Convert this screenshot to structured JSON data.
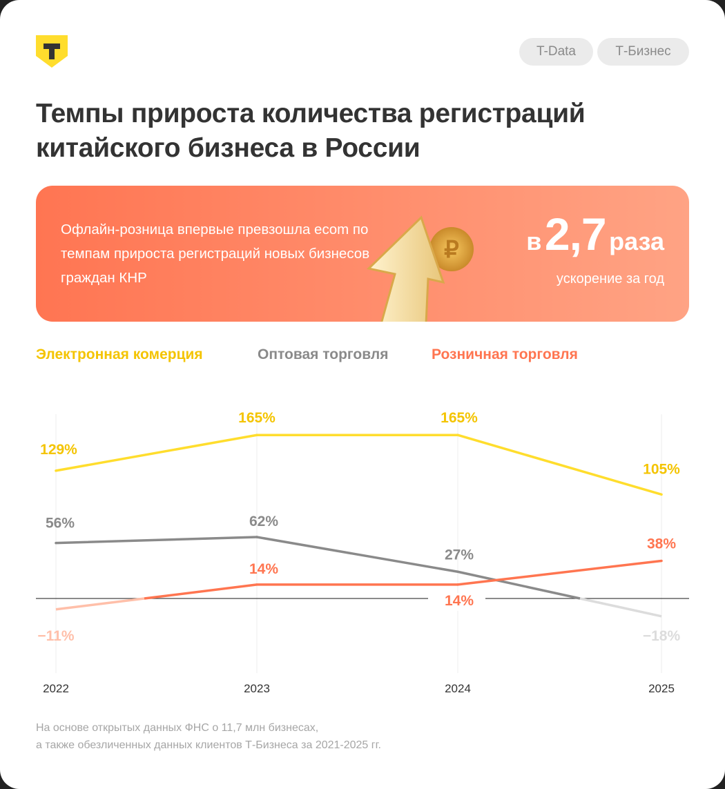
{
  "header": {
    "logo_letter": "Т",
    "tags": [
      "T-Data",
      "Т-Бизнес"
    ]
  },
  "title": "Темпы прироста количества регистраций китайского бизнеса в России",
  "banner": {
    "text": "Офлайн-розница впервые превзошла ecom по темпам прироста регистраций новых бизнесов граждан КНР",
    "prefix": "в",
    "value": "2,7",
    "suffix": "раза",
    "caption": "ускорение за год"
  },
  "colors": {
    "ecom": "#ffdd2d",
    "ecom_text": "#f4c400",
    "wholesale": "#8a8a8a",
    "retail": "#ff7550",
    "retail_neg": "#ffbfa9",
    "wholesale_neg": "#dcdcdc"
  },
  "chart_data": {
    "type": "line",
    "categories": [
      "2022",
      "2023",
      "2024",
      "2025"
    ],
    "series": [
      {
        "name": "Электронная комерция",
        "values": [
          129,
          165,
          165,
          105
        ],
        "labels": [
          "129%",
          "165%",
          "165%",
          "105%"
        ]
      },
      {
        "name": "Оптовая торговля",
        "values": [
          56,
          62,
          27,
          -18
        ],
        "labels": [
          "56%",
          "62%",
          "27%",
          "−18%"
        ]
      },
      {
        "name": "Розничная торговля",
        "values": [
          -11,
          14,
          14,
          38
        ],
        "labels": [
          "−11%",
          "14%",
          "14%",
          "38%"
        ]
      }
    ],
    "baseline": 0,
    "ylim": [
      -75,
      210
    ],
    "legend": "top-left"
  },
  "footnote": [
    "На основе открытых данных ФНС о 11,7 млн бизнесах,",
    "а также обезличенных данных клиентов Т-Бизнеса за 2021-2025 гг."
  ]
}
